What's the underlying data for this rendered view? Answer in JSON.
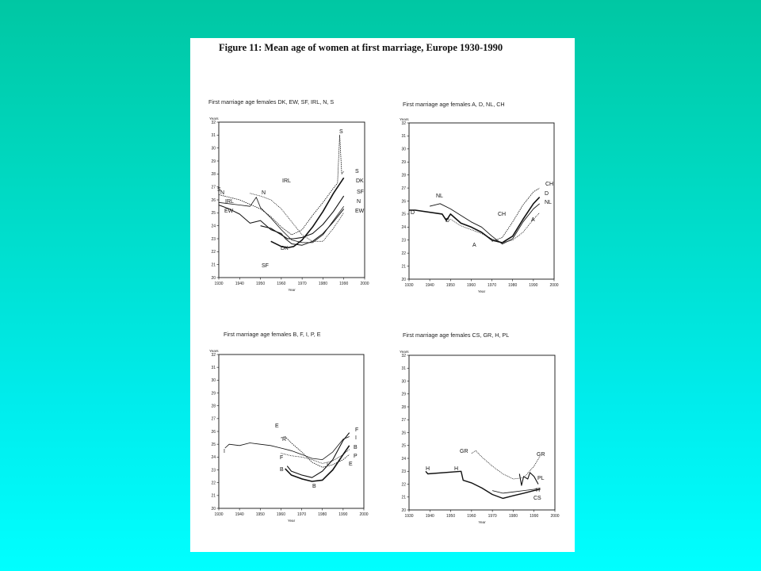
{
  "figure_title": "Figure 11: Mean age of women at first marriage, Europe 1930-1990",
  "chart_data": [
    {
      "type": "line",
      "title": "First marriage age females DK, EW, SF, IRL, N, S",
      "ylabel": "Years",
      "xlabel": "Year",
      "xlim": [
        1930,
        2000
      ],
      "ylim": [
        20,
        32
      ],
      "xticks": [
        "1930",
        "1940",
        "1950",
        "1960",
        "1970",
        "1980",
        "1990",
        "2000"
      ],
      "yticks": [
        "20",
        "21",
        "22",
        "23",
        "24",
        "25",
        "26",
        "27",
        "28",
        "29",
        "30",
        "31",
        "32"
      ],
      "series": [
        {
          "name": "S",
          "x": [
            1930,
            1940,
            1950,
            1955,
            1960,
            1965,
            1970,
            1975,
            1980,
            1985,
            1987,
            1988,
            1989,
            1990
          ],
          "y": [
            26.4,
            26.0,
            25.3,
            24.7,
            23.9,
            23.3,
            23.7,
            24.8,
            25.8,
            26.9,
            27.3,
            31.0,
            28.0,
            28.2
          ]
        },
        {
          "name": "DK",
          "x": [
            1955,
            1960,
            1963,
            1966,
            1970,
            1975,
            1980,
            1985,
            1990
          ],
          "y": [
            22.8,
            22.4,
            22.3,
            22.4,
            22.9,
            23.9,
            25.1,
            26.5,
            27.7
          ]
        },
        {
          "name": "SF",
          "x": [
            1950,
            1955,
            1960,
            1963,
            1966,
            1970,
            1975,
            1980,
            1985,
            1990
          ],
          "y": [
            24.0,
            23.8,
            23.3,
            23.0,
            23.0,
            23.1,
            23.4,
            24.1,
            25.1,
            26.3
          ]
        },
        {
          "name": "N",
          "x": [
            1930,
            1940,
            1945,
            1948,
            1950,
            1955,
            1960,
            1965,
            1970,
            1975,
            1980,
            1985,
            1990
          ],
          "y": [
            25.8,
            25.6,
            25.5,
            26.2,
            25.4,
            24.6,
            23.7,
            22.9,
            22.7,
            22.7,
            23.3,
            24.4,
            25.5
          ]
        },
        {
          "name": "IRL",
          "x": [
            1945,
            1950,
            1955,
            1960,
            1965,
            1970,
            1975,
            1980,
            1985,
            1990
          ],
          "y": [
            26.5,
            26.3,
            26.0,
            25.3,
            24.3,
            23.3,
            22.8,
            22.8,
            23.8,
            25.0
          ]
        },
        {
          "name": "EW",
          "x": [
            1930,
            1935,
            1940,
            1945,
            1950,
            1955,
            1960,
            1962,
            1965,
            1970,
            1975,
            1980,
            1985,
            1990
          ],
          "y": [
            25.6,
            25.3,
            24.9,
            24.2,
            24.4,
            23.7,
            23.4,
            23.0,
            22.6,
            22.5,
            22.8,
            23.4,
            24.3,
            25.3
          ]
        }
      ],
      "annotations": [
        "S",
        "S",
        "DK",
        "SF",
        "N",
        "IRL",
        "N",
        "IRL",
        "S",
        "N",
        "EW",
        "EW",
        "SF",
        "DK"
      ]
    },
    {
      "type": "line",
      "title": "First marriage age females A, D, NL, CH",
      "ylabel": "Years",
      "xlabel": "Year",
      "xlim": [
        1930,
        2000
      ],
      "ylim": [
        20,
        32
      ],
      "xticks": [
        "1930",
        "1940",
        "1950",
        "1960",
        "1970",
        "1980",
        "1990",
        "2000"
      ],
      "yticks": [
        "20",
        "21",
        "22",
        "23",
        "24",
        "25",
        "26",
        "27",
        "28",
        "29",
        "30",
        "31",
        "32"
      ],
      "series": [
        {
          "name": "CH",
          "x": [
            1970,
            1975,
            1980,
            1985,
            1990,
            1993
          ],
          "y": [
            22.9,
            23.2,
            24.4,
            25.7,
            26.7,
            27.0
          ]
        },
        {
          "name": "D",
          "x": [
            1930,
            1933,
            1946,
            1948,
            1950,
            1955,
            1960,
            1965,
            1970,
            1975,
            1980,
            1985,
            1990,
            1993
          ],
          "y": [
            25.3,
            25.3,
            25.0,
            24.5,
            25.0,
            24.3,
            24.0,
            23.6,
            23.0,
            22.8,
            23.3,
            24.6,
            25.8,
            26.3
          ]
        },
        {
          "name": "NL",
          "x": [
            1940,
            1945,
            1950,
            1955,
            1960,
            1965,
            1970,
            1975,
            1980,
            1985,
            1990,
            1993
          ],
          "y": [
            25.6,
            25.8,
            25.4,
            24.9,
            24.4,
            24.0,
            23.3,
            22.7,
            23.1,
            24.4,
            25.4,
            25.8
          ]
        },
        {
          "name": "A",
          "x": [
            1950,
            1955,
            1960,
            1965,
            1970,
            1975,
            1980,
            1985,
            1990,
            1993
          ],
          "y": [
            24.6,
            24.1,
            23.8,
            23.5,
            23.1,
            22.8,
            23.0,
            23.6,
            24.6,
            25.1
          ]
        }
      ],
      "annotations": [
        "D",
        "NL",
        "D",
        "CH",
        "CH",
        "D",
        "NL",
        "A",
        "A"
      ]
    },
    {
      "type": "line",
      "title": "First marriage age females B, F, I, P, E",
      "ylabel": "Years",
      "xlabel": "Year",
      "xlim": [
        1930,
        2000
      ],
      "ylim": [
        20,
        32
      ],
      "xticks": [
        "1930",
        "1940",
        "1950",
        "1960",
        "1970",
        "1980",
        "1990",
        "2000"
      ],
      "yticks": [
        "20",
        "21",
        "22",
        "23",
        "24",
        "25",
        "26",
        "27",
        "28",
        "29",
        "30",
        "31",
        "32"
      ],
      "series": [
        {
          "name": "I",
          "x": [
            1933,
            1935,
            1940,
            1945,
            1950,
            1955,
            1960,
            1965,
            1970,
            1975,
            1980,
            1985,
            1990,
            1993
          ],
          "y": [
            24.7,
            25.0,
            24.9,
            25.1,
            25.0,
            24.9,
            24.7,
            24.5,
            24.2,
            23.9,
            23.8,
            24.4,
            25.4,
            25.6
          ]
        },
        {
          "name": "E",
          "x": [
            1960,
            1962,
            1965,
            1970,
            1975,
            1980,
            1985,
            1990,
            1993
          ],
          "y": [
            25.5,
            25.6,
            25.1,
            24.4,
            23.6,
            23.2,
            23.4,
            23.8,
            24.2
          ]
        },
        {
          "name": "F",
          "x": [
            1963,
            1965,
            1970,
            1975,
            1980,
            1985,
            1990,
            1993
          ],
          "y": [
            23.3,
            22.9,
            22.6,
            22.4,
            22.9,
            23.8,
            25.3,
            25.9
          ]
        },
        {
          "name": "P",
          "x": [
            1960,
            1965,
            1970,
            1975,
            1980,
            1985,
            1990,
            1993
          ],
          "y": [
            24.3,
            24.1,
            24.0,
            23.8,
            23.5,
            23.7,
            24.2,
            24.6
          ]
        },
        {
          "name": "B",
          "x": [
            1962,
            1965,
            1970,
            1975,
            1980,
            1985,
            1990,
            1993
          ],
          "y": [
            23.1,
            22.6,
            22.3,
            22.1,
            22.2,
            23.0,
            24.2,
            24.9
          ]
        }
      ],
      "annotations": [
        "E",
        "I",
        "R",
        "F",
        "B",
        "B",
        "F",
        "I",
        "B",
        "P",
        "E",
        "I"
      ]
    },
    {
      "type": "line",
      "title": "First marriage age females CS, GR, H, PL",
      "ylabel": "Years",
      "xlabel": "Year",
      "xlim": [
        1930,
        2000
      ],
      "ylim": [
        20,
        32
      ],
      "xticks": [
        "1930",
        "1940",
        "1950",
        "1960",
        "1970",
        "1980",
        "1990",
        "2000"
      ],
      "yticks": [
        "20",
        "21",
        "22",
        "23",
        "24",
        "25",
        "26",
        "27",
        "28",
        "29",
        "30",
        "31",
        "32"
      ],
      "series": [
        {
          "name": "GR",
          "x": [
            1960,
            1962,
            1965,
            1970,
            1975,
            1980,
            1985,
            1990,
            1993
          ],
          "y": [
            24.4,
            24.6,
            24.1,
            23.4,
            22.8,
            22.4,
            22.5,
            23.4,
            24.2
          ]
        },
        {
          "name": "PL",
          "x": [
            1983,
            1984,
            1985,
            1987,
            1988,
            1990,
            1992
          ],
          "y": [
            22.8,
            21.9,
            22.6,
            22.4,
            22.9,
            22.6,
            22.0
          ]
        },
        {
          "name": "H",
          "x": [
            1938,
            1939,
            1955,
            1956,
            1960,
            1965,
            1970,
            1975,
            1980,
            1985,
            1990,
            1993
          ],
          "y": [
            23.0,
            22.8,
            23.0,
            22.3,
            22.1,
            21.7,
            21.2,
            20.9,
            21.1,
            21.3,
            21.5,
            21.6
          ]
        },
        {
          "name": "CS",
          "x": [
            1970,
            1975,
            1980,
            1985,
            1990,
            1993
          ],
          "y": [
            21.5,
            21.3,
            21.4,
            21.5,
            21.6,
            21.7
          ]
        }
      ],
      "annotations": [
        "GR",
        "GR",
        "H",
        "H",
        "PL",
        "H",
        "CS"
      ]
    }
  ]
}
